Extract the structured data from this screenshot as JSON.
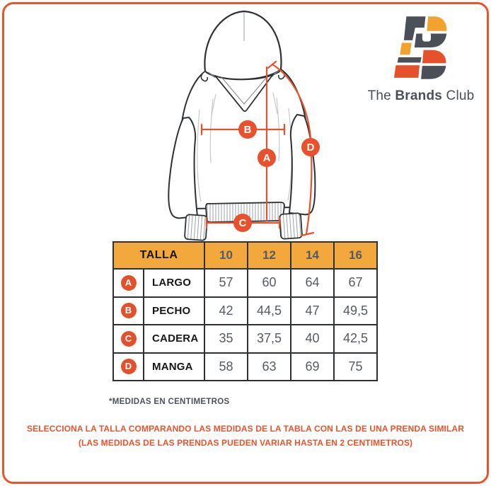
{
  "brand": {
    "name": "The Brands Club",
    "word_the": "The",
    "word_brands": "Brands",
    "word_club": "Club"
  },
  "size_table": {
    "header_label": "TALLA",
    "sizes": [
      "10",
      "12",
      "14",
      "16"
    ],
    "rows": [
      {
        "letter": "A",
        "label": "LARGO",
        "values": [
          "57",
          "60",
          "64",
          "67"
        ]
      },
      {
        "letter": "B",
        "label": "PECHO",
        "values": [
          "42",
          "44,5",
          "47",
          "49,5"
        ]
      },
      {
        "letter": "C",
        "label": "CADERA",
        "values": [
          "35",
          "37,5",
          "40",
          "42,5"
        ]
      },
      {
        "letter": "D",
        "label": "MANGA",
        "values": [
          "58",
          "63",
          "69",
          "75"
        ]
      }
    ]
  },
  "notes": {
    "units_note": "*MEDIDAS EN CENTIMETROS",
    "selection_line1": "SELECCIONA LA TALLA COMPARANDO LAS MEDIDAS DE LA TABLA CON LAS DE UNA PRENDA SIMILAR",
    "selection_line2": "(LAS MEDIDAS DE LAS PRENDAS PUEDEN VARIAR HASTA EN 2 CENTIMETROS)"
  },
  "colors": {
    "accent_orange": "#E8542C",
    "badge_orange": "#E3502A",
    "header_amber": "#F2A83D",
    "line_art_dark": "#2E3134",
    "text_gray": "#555B63",
    "logo_dark": "#4A4F58",
    "logo_yellow": "#F2A32F"
  },
  "chart_data": {
    "type": "table",
    "title": "Tabla de tallas (hoodie)",
    "columns": [
      "TALLA",
      "10",
      "12",
      "14",
      "16"
    ],
    "rows": [
      [
        "A LARGO",
        57,
        60,
        64,
        67
      ],
      [
        "B PECHO",
        42,
        44.5,
        47,
        49.5
      ],
      [
        "C CADERA",
        35,
        37.5,
        40,
        42.5
      ],
      [
        "D MANGA",
        58,
        63,
        69,
        75
      ]
    ],
    "units": "centimetros"
  }
}
